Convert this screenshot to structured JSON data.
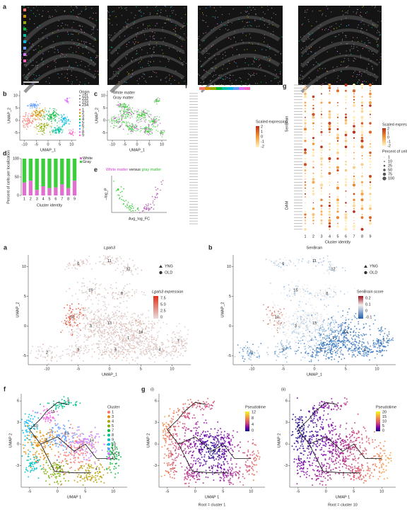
{
  "top": {
    "a": {
      "label": "a",
      "legend": [
        "1",
        "2",
        "3",
        "4",
        "5",
        "6",
        "7",
        "8",
        "9"
      ]
    },
    "b": {
      "label": "b",
      "x_label": "UMAP_1",
      "y_label": "UMAP_2",
      "x_ticks": [
        -10,
        -5,
        0,
        5,
        10
      ],
      "y_ticks": [
        10,
        5,
        0,
        -5
      ],
      "legend_title": "Origin",
      "origins": [
        "231",
        "232",
        "233",
        "234"
      ],
      "clusters": [
        "1",
        "2",
        "3",
        "4",
        "5",
        "6",
        "7",
        "8",
        "9"
      ]
    },
    "c": {
      "label": "c",
      "x_label": "UMAP_1",
      "y_label": "UMAP_2",
      "x_ticks": [
        -10,
        -5,
        0,
        5,
        10
      ],
      "y_ticks": [
        10,
        5,
        0,
        -5
      ],
      "legend": [
        "White matter",
        "Gray matter"
      ]
    },
    "d": {
      "label": "d",
      "y_label": "Percent of cells per localization",
      "x_label": "Cluster identity",
      "y_ticks": [
        0,
        50,
        100
      ],
      "x_ticks": [
        "1",
        "2",
        "3",
        "4",
        "5",
        "6",
        "7",
        "8",
        "9"
      ],
      "legend": [
        "White",
        "Gray"
      ],
      "white_percent": [
        35,
        40,
        15,
        25,
        20,
        22,
        30,
        20,
        40
      ]
    },
    "e": {
      "label": "e",
      "title_white": "White matter",
      "title_versus": "versus",
      "title_gray": "gray matter",
      "x_label": "Avg_log_FC",
      "y_label": "–log_P"
    },
    "f": {
      "label": "f",
      "columns": [
        "1",
        "2",
        "3",
        "4",
        "5",
        "6",
        "7",
        "8",
        "9"
      ],
      "legend_title": "Scaled expression",
      "legend_ticks": [
        2,
        1,
        0,
        -1,
        -2
      ]
    },
    "g": {
      "label": "g",
      "columns": [
        "1",
        "2",
        "3",
        "4",
        "5",
        "6",
        "7",
        "8",
        "9"
      ],
      "x_label": "Cluster identity",
      "groups": [
        "SenBrain",
        "DAM"
      ],
      "color_title": "Scaled expression",
      "color_ticks": [
        2,
        1,
        0,
        -1,
        -2
      ],
      "size_title": "Percent of cells",
      "sizes": [
        1,
        10,
        25,
        50,
        75,
        100
      ]
    }
  },
  "bottom": {
    "a": {
      "label": "a",
      "title": "Lgals3",
      "x_label": "UMAP_1",
      "y_label": "UMAP_2",
      "x_ticks": [
        -10,
        -5,
        0,
        5,
        10
      ],
      "y_ticks": [
        10,
        5,
        0,
        -5
      ],
      "shapes": [
        "YNG",
        "OLD"
      ],
      "legend_title": "Lgals3 expression",
      "legend_ticks": [
        "7.5",
        "5.0",
        "2.5",
        "0"
      ],
      "cluster_labels": [
        "6",
        "11",
        "12",
        "8",
        "15",
        "10",
        "3",
        "13",
        "14",
        "1",
        "7",
        "4",
        "5",
        "9",
        "2"
      ]
    },
    "b": {
      "label": "b",
      "title": "SenBrain",
      "x_label": "UMAP_1",
      "y_label": "UMAP_2",
      "x_ticks": [
        -10,
        -5,
        0,
        5,
        10
      ],
      "y_ticks": [
        10,
        5,
        0,
        -5
      ],
      "shapes": [
        "YNG",
        "OLD"
      ],
      "legend_title": "SenBrain score",
      "legend_ticks": [
        "0.2",
        "0.1",
        "0",
        "-0.1"
      ],
      "cluster_labels": [
        "6",
        "11",
        "12",
        "8",
        "15",
        "10",
        "3",
        "13",
        "14",
        "1",
        "7",
        "4",
        "5",
        "9",
        "2"
      ]
    },
    "f": {
      "label": "f",
      "x_label": "UMAP 1",
      "y_label": "UMAP 2",
      "x_ticks": [
        -5,
        0,
        5,
        10
      ],
      "y_ticks": [
        6,
        3,
        0,
        -3
      ],
      "legend_title": "Cluster",
      "clusters": [
        "1",
        "3",
        "4",
        "5",
        "7",
        "8",
        "9",
        "10",
        "13",
        "14",
        "15"
      ]
    },
    "g1": {
      "label": "g",
      "sub": "(i)",
      "x_label": "UMAP 1",
      "y_label": "UMAP 2",
      "x_ticks": [
        -5,
        0,
        5,
        10
      ],
      "y_ticks": [
        6,
        3,
        0,
        -3
      ],
      "legend_title": "Pseudotime",
      "legend_ticks": [
        12,
        8,
        4,
        0
      ],
      "root": "Root = cluster 1"
    },
    "g2": {
      "sub": "(ii)",
      "x_label": "UMAP 1",
      "y_label": "UMAP 2",
      "x_ticks": [
        -5,
        0,
        5,
        10
      ],
      "y_ticks": [
        6,
        3,
        0,
        -3
      ],
      "legend_title": "Pseudotime",
      "legend_ticks": [
        20,
        15,
        10,
        5,
        0
      ],
      "root": "Root = cluster 10"
    }
  }
}
